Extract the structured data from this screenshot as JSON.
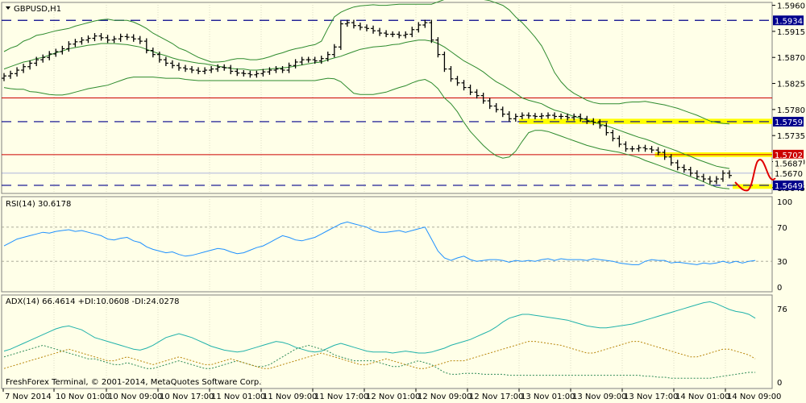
{
  "window": {
    "symbol_label": "GBPUSD,H1",
    "footer": "FreshForex Terminal, © 2001-2014, MetaQuotes Software Corp."
  },
  "colors": {
    "background": "#ffffe8",
    "grid": "#c9c9b0",
    "candle": "#000000",
    "bands": "#2e8b2e",
    "blue_dashed": "#00008b",
    "red_level": "#cc0000",
    "highlight": "#ffff00",
    "rsi_line": "#1e90ff",
    "adx_line": "#20b2aa",
    "di_plus": "#2e8b57",
    "di_minus": "#b8860b",
    "annotation": "#e00000"
  },
  "chart_data": [
    {
      "type": "line",
      "panel": "price",
      "title": "GBPUSD,H1",
      "y_ticks": [
        1.596,
        1.5915,
        1.587,
        1.5825,
        1.578,
        1.5735,
        1.569,
        1.5645
      ],
      "ylim": [
        1.5635,
        1.5965
      ],
      "x_ticks": [
        "7 Nov 2014",
        "10 Nov 01:00",
        "10 Nov 09:00",
        "10 Nov 17:00",
        "11 Nov 01:00",
        "11 Nov 09:00",
        "11 Nov 17:00",
        "12 Nov 01:00",
        "12 Nov 09:00",
        "12 Nov 17:00",
        "13 Nov 01:00",
        "13 Nov 09:00",
        "13 Nov 17:00",
        "14 Nov 01:00",
        "14 Nov 09:00"
      ],
      "indicator": "Bollinger Bands",
      "close": [
        1.5838,
        1.5842,
        1.5848,
        1.5854,
        1.586,
        1.5866,
        1.587,
        1.5876,
        1.588,
        1.5885,
        1.5893,
        1.5897,
        1.59,
        1.5903,
        1.5907,
        1.5904,
        1.59,
        1.5902,
        1.5906,
        1.5905,
        1.5902,
        1.5898,
        1.5882,
        1.5875,
        1.5866,
        1.586,
        1.5856,
        1.5852,
        1.585,
        1.5848,
        1.5846,
        1.5848,
        1.585,
        1.5853,
        1.5852,
        1.5846,
        1.5843,
        1.5842,
        1.584,
        1.5842,
        1.5845,
        1.5848,
        1.585,
        1.5848,
        1.5856,
        1.5862,
        1.5866,
        1.5866,
        1.5864,
        1.5868,
        1.5875,
        1.5888,
        1.5928,
        1.593,
        1.5925,
        1.5922,
        1.592,
        1.5916,
        1.5912,
        1.591,
        1.591,
        1.5908,
        1.591,
        1.5918,
        1.5926,
        1.593,
        1.59,
        1.5875,
        1.585,
        1.5833,
        1.5826,
        1.5818,
        1.581,
        1.5804,
        1.5795,
        1.5786,
        1.578,
        1.5772,
        1.5764,
        1.5768,
        1.577,
        1.5769,
        1.5768,
        1.5769,
        1.577,
        1.5768,
        1.5768,
        1.5766,
        1.5768,
        1.5764,
        1.576,
        1.5758,
        1.5752,
        1.574,
        1.573,
        1.572,
        1.5712,
        1.5712,
        1.5714,
        1.5712,
        1.571,
        1.5706,
        1.5698,
        1.5688,
        1.568,
        1.5676,
        1.567,
        1.5664,
        1.566,
        1.5656,
        1.566,
        1.567,
        1.5666
      ],
      "upper_band": [
        1.588,
        1.5886,
        1.589,
        1.5898,
        1.5902,
        1.5908,
        1.591,
        1.5913,
        1.5916,
        1.5918,
        1.592,
        1.5924,
        1.5927,
        1.593,
        1.5933,
        1.5935,
        1.5936,
        1.5934,
        1.5934,
        1.5934,
        1.5931,
        1.5926,
        1.592,
        1.5912,
        1.5906,
        1.59,
        1.5894,
        1.5886,
        1.5882,
        1.5876,
        1.587,
        1.5866,
        1.5862,
        1.5862,
        1.5863,
        1.5866,
        1.5868,
        1.5868,
        1.5866,
        1.5866,
        1.5868,
        1.5871,
        1.5875,
        1.5878,
        1.5882,
        1.5885,
        1.5887,
        1.589,
        1.5892,
        1.5898,
        1.592,
        1.594,
        1.5948,
        1.5953,
        1.5957,
        1.5959,
        1.596,
        1.5961,
        1.596,
        1.596,
        1.5961,
        1.5962,
        1.5962,
        1.5962,
        1.5962,
        1.5962,
        1.5962,
        1.5966,
        1.597,
        1.5972,
        1.5972,
        1.5972,
        1.5972,
        1.5972,
        1.597,
        1.5968,
        1.5964,
        1.596,
        1.5952,
        1.594,
        1.593,
        1.5918,
        1.5905,
        1.589,
        1.5868,
        1.5844,
        1.5828,
        1.5816,
        1.5808,
        1.5802,
        1.5796,
        1.5792,
        1.579,
        1.579,
        1.579,
        1.579,
        1.5792,
        1.5793,
        1.5793,
        1.5794,
        1.5792,
        1.579,
        1.5788,
        1.5785,
        1.5782,
        1.5778,
        1.5774,
        1.577,
        1.5765,
        1.576,
        1.5758,
        1.5756,
        1.5755
      ],
      "middle_band": [
        1.585,
        1.5854,
        1.5858,
        1.5862,
        1.5864,
        1.5868,
        1.587,
        1.5874,
        1.5878,
        1.5881,
        1.5885,
        1.5887,
        1.5889,
        1.5891,
        1.5892,
        1.5894,
        1.5894,
        1.5894,
        1.5893,
        1.5892,
        1.589,
        1.5888,
        1.5884,
        1.588,
        1.5876,
        1.5873,
        1.5869,
        1.5866,
        1.5864,
        1.5862,
        1.586,
        1.5859,
        1.5857,
        1.5855,
        1.5853,
        1.5851,
        1.585,
        1.585,
        1.5848,
        1.5848,
        1.5849,
        1.585,
        1.5851,
        1.5852,
        1.5853,
        1.5855,
        1.5857,
        1.5859,
        1.5861,
        1.5862,
        1.5866,
        1.5869,
        1.5872,
        1.5876,
        1.588,
        1.5884,
        1.5886,
        1.5888,
        1.5889,
        1.589,
        1.5892,
        1.5893,
        1.5896,
        1.5898,
        1.59,
        1.59,
        1.5898,
        1.5894,
        1.5888,
        1.588,
        1.5872,
        1.5864,
        1.5858,
        1.5852,
        1.5845,
        1.5836,
        1.5828,
        1.5822,
        1.5815,
        1.5808,
        1.58,
        1.5796,
        1.5793,
        1.579,
        1.5784,
        1.5779,
        1.5776,
        1.5772,
        1.5768,
        1.5765,
        1.5762,
        1.5758,
        1.5755,
        1.5752,
        1.5748,
        1.5744,
        1.574,
        1.5736,
        1.5732,
        1.5729,
        1.5725,
        1.572,
        1.5716,
        1.5712,
        1.5708,
        1.5703,
        1.5699,
        1.5694,
        1.569,
        1.5686,
        1.5682,
        1.568,
        1.5678
      ],
      "lower_band": [
        1.5818,
        1.5816,
        1.5815,
        1.5815,
        1.5811,
        1.581,
        1.5808,
        1.5806,
        1.5805,
        1.5805,
        1.5807,
        1.581,
        1.5813,
        1.5816,
        1.5818,
        1.582,
        1.5822,
        1.5826,
        1.583,
        1.5834,
        1.5836,
        1.5836,
        1.5836,
        1.5836,
        1.5835,
        1.5834,
        1.5834,
        1.5834,
        1.5832,
        1.5831,
        1.583,
        1.583,
        1.583,
        1.583,
        1.583,
        1.583,
        1.583,
        1.583,
        1.583,
        1.583,
        1.583,
        1.583,
        1.583,
        1.583,
        1.583,
        1.583,
        1.583,
        1.583,
        1.583,
        1.5832,
        1.5834,
        1.5833,
        1.5828,
        1.5818,
        1.5808,
        1.5806,
        1.5806,
        1.5806,
        1.5808,
        1.581,
        1.5814,
        1.5818,
        1.5821,
        1.5826,
        1.583,
        1.5832,
        1.5826,
        1.5816,
        1.58,
        1.579,
        1.5776,
        1.5758,
        1.5742,
        1.573,
        1.5718,
        1.5708,
        1.57,
        1.5696,
        1.5698,
        1.5708,
        1.5725,
        1.574,
        1.5744,
        1.5744,
        1.5742,
        1.5738,
        1.5734,
        1.573,
        1.5726,
        1.5722,
        1.5718,
        1.5715,
        1.5712,
        1.571,
        1.5708,
        1.5706,
        1.5703,
        1.57,
        1.5697,
        1.5692,
        1.5688,
        1.5684,
        1.568,
        1.5676,
        1.5672,
        1.5668,
        1.5664,
        1.566,
        1.5655,
        1.565,
        1.5646,
        1.5644,
        1.5643
      ],
      "levels": {
        "blue_dashed": [
          1.5934,
          1.5759,
          1.5649
        ],
        "red": [
          1.58,
          1.5702
        ],
        "blue_solid": [
          1.567
        ]
      },
      "price_tags": [
        {
          "value": 1.5934,
          "label": "1.5934",
          "style": "blue"
        },
        {
          "value": 1.5759,
          "label": "1.5759",
          "style": "blue"
        },
        {
          "value": 1.5702,
          "label": "1.5702",
          "style": "red"
        },
        {
          "value": 1.5687,
          "label": "1.5687",
          "style": "plain"
        },
        {
          "value": 1.567,
          "label": "1.5670",
          "style": "plain"
        },
        {
          "value": 1.5649,
          "label": "1.5649",
          "style": "blue"
        }
      ],
      "highlight_zones": [
        {
          "from": 1.5755,
          "to": 1.5764,
          "start_bar": 80
        },
        {
          "from": 1.5698,
          "to": 1.5706,
          "start_bar": 101
        },
        {
          "from": 1.5643,
          "to": 1.5651,
          "start_bar": 113
        }
      ]
    },
    {
      "type": "line",
      "panel": "rsi",
      "title": "RSI(14) 30.6178",
      "y_ticks": [
        100,
        70,
        30,
        0
      ],
      "ylim": [
        0,
        100
      ],
      "series": [
        {
          "name": "RSI(14) 30.6178",
          "values": [
            48,
            52,
            56,
            58,
            60,
            62,
            64,
            63,
            65,
            66,
            67,
            65,
            66,
            64,
            62,
            60,
            56,
            55,
            57,
            58,
            54,
            52,
            47,
            44,
            42,
            40,
            41,
            38,
            36,
            37,
            39,
            41,
            43,
            45,
            44,
            41,
            39,
            40,
            43,
            46,
            48,
            52,
            56,
            60,
            58,
            55,
            54,
            56,
            58,
            62,
            66,
            70,
            74,
            76,
            74,
            72,
            70,
            66,
            64,
            64,
            65,
            66,
            64,
            66,
            68,
            70,
            56,
            42,
            34,
            31,
            34,
            36,
            32,
            30,
            31,
            32,
            32,
            31,
            29,
            31,
            30,
            31,
            30,
            32,
            33,
            31,
            33,
            32,
            32,
            32,
            31,
            33,
            32,
            31,
            30,
            28,
            27,
            26,
            26,
            30,
            32,
            31,
            31,
            28,
            29,
            28,
            27,
            26,
            28,
            27,
            28,
            30,
            28,
            30,
            28,
            30,
            31
          ]
        }
      ]
    },
    {
      "type": "line",
      "panel": "adx",
      "title": "ADX(14) 66.4614 +DI:10.0608 -DI:24.0278",
      "y_ticks": [
        76,
        0
      ],
      "ylim": [
        0,
        85
      ],
      "series": [
        {
          "name": "ADX(14) 66.4614",
          "values": [
            32,
            34,
            37,
            40,
            43,
            46,
            49,
            52,
            55,
            57,
            58,
            56,
            54,
            50,
            46,
            44,
            42,
            40,
            38,
            36,
            34,
            33,
            35,
            38,
            42,
            46,
            48,
            50,
            48,
            46,
            43,
            40,
            37,
            35,
            33,
            32,
            31,
            32,
            34,
            36,
            38,
            40,
            42,
            41,
            39,
            36,
            34,
            32,
            31,
            32,
            35,
            38,
            40,
            38,
            36,
            34,
            32,
            31,
            31,
            31,
            30,
            31,
            32,
            31,
            30,
            30,
            31,
            33,
            35,
            38,
            40,
            42,
            44,
            47,
            50,
            53,
            57,
            62,
            66,
            68,
            70,
            70,
            69,
            68,
            67,
            66,
            65,
            64,
            62,
            60,
            58,
            57,
            56,
            56,
            57,
            58,
            59,
            60,
            62,
            64,
            66,
            68,
            70,
            72,
            74,
            76,
            78,
            80,
            82,
            83,
            81,
            78,
            75,
            73,
            72,
            70,
            66
          ]
        },
        {
          "name": "+DI:10.0608",
          "values": [
            26,
            28,
            30,
            32,
            34,
            36,
            38,
            36,
            34,
            32,
            30,
            28,
            26,
            24,
            24,
            22,
            20,
            18,
            18,
            20,
            18,
            16,
            14,
            14,
            16,
            18,
            20,
            22,
            20,
            18,
            16,
            14,
            14,
            16,
            18,
            20,
            22,
            20,
            18,
            16,
            16,
            18,
            22,
            26,
            30,
            34,
            36,
            38,
            36,
            34,
            32,
            28,
            26,
            24,
            22,
            22,
            22,
            22,
            20,
            18,
            16,
            16,
            18,
            20,
            22,
            20,
            18,
            14,
            10,
            8,
            8,
            9,
            9,
            9,
            8,
            8,
            8,
            8,
            7,
            7,
            7,
            7,
            7,
            7,
            7,
            7,
            7,
            7,
            7,
            7,
            7,
            7,
            7,
            7,
            7,
            7,
            7,
            7,
            7,
            6,
            6,
            5,
            5,
            4,
            4,
            4,
            4,
            4,
            4,
            4,
            5,
            6,
            7,
            8,
            9,
            10,
            10
          ]
        },
        {
          "name": "-DI:24.0278",
          "values": [
            14,
            16,
            18,
            20,
            22,
            24,
            26,
            28,
            30,
            32,
            34,
            32,
            30,
            28,
            26,
            24,
            22,
            22,
            24,
            26,
            24,
            22,
            20,
            18,
            20,
            22,
            24,
            26,
            24,
            22,
            20,
            18,
            18,
            20,
            22,
            24,
            22,
            20,
            18,
            16,
            14,
            14,
            16,
            18,
            20,
            22,
            24,
            26,
            28,
            30,
            28,
            26,
            24,
            22,
            20,
            18,
            18,
            20,
            22,
            24,
            22,
            20,
            18,
            16,
            14,
            14,
            16,
            18,
            20,
            22,
            22,
            22,
            24,
            26,
            28,
            30,
            32,
            34,
            36,
            38,
            40,
            42,
            42,
            41,
            40,
            39,
            38,
            36,
            34,
            32,
            30,
            30,
            32,
            34,
            36,
            38,
            40,
            42,
            42,
            40,
            38,
            36,
            34,
            32,
            30,
            28,
            26,
            26,
            28,
            30,
            32,
            34,
            34,
            32,
            30,
            28,
            24
          ]
        }
      ]
    }
  ]
}
